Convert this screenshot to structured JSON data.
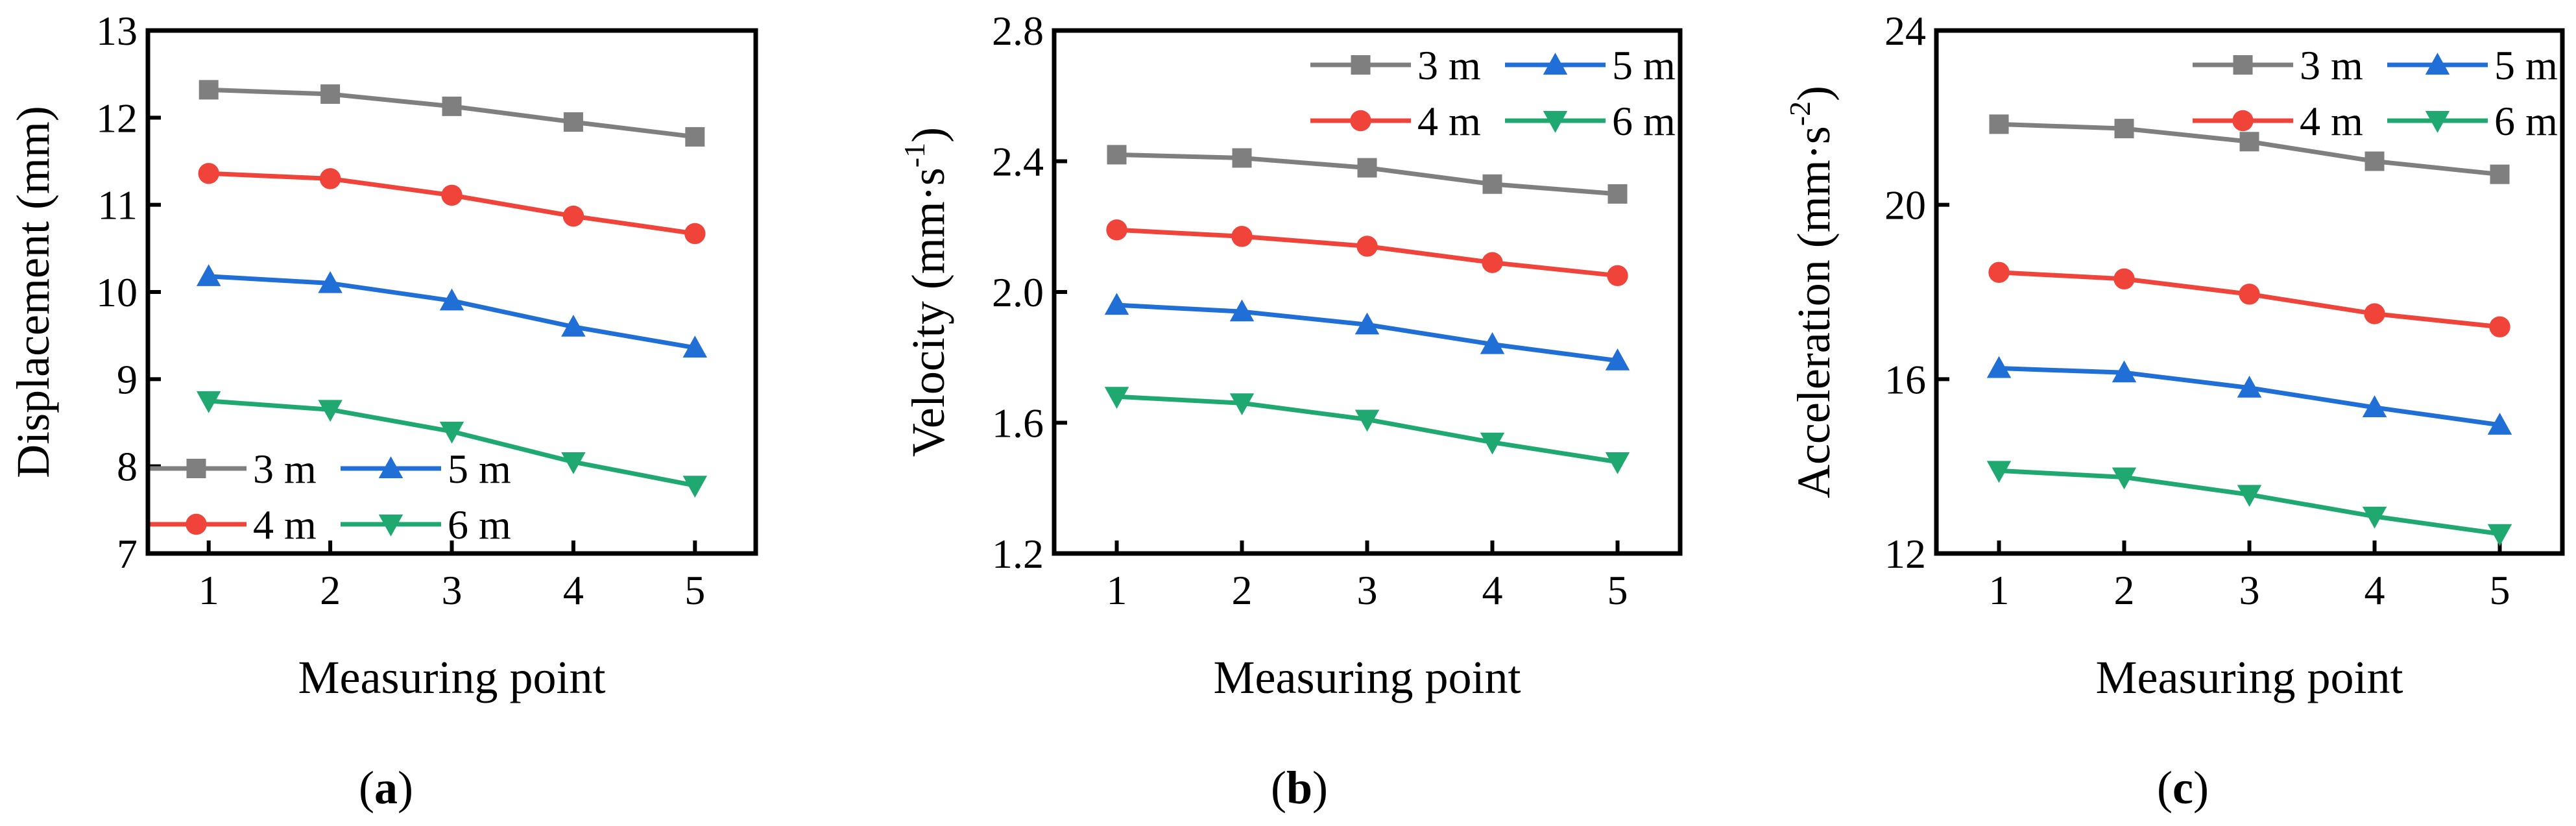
{
  "figure": {
    "panels": [
      {
        "id": "a",
        "label_open": "(",
        "label_letter": "a",
        "label_close": ")"
      },
      {
        "id": "b",
        "label_open": "(",
        "label_letter": "b",
        "label_close": ")"
      },
      {
        "id": "c",
        "label_open": "(",
        "label_letter": "c",
        "label_close": ")"
      }
    ]
  },
  "chart_data": [
    {
      "type": "line",
      "xlabel": "Measuring point",
      "ylabel": "Displacement (mm)",
      "ylabel_parts": {
        "main": "Displacement (mm)",
        "sup": "",
        "tail": ""
      },
      "categories": [
        1,
        2,
        3,
        4,
        5
      ],
      "xlim": [
        0.5,
        5.5
      ],
      "ylim": [
        7,
        13
      ],
      "yticks": [
        7,
        8,
        9,
        10,
        11,
        12,
        13
      ],
      "ytick_labels": [
        "7",
        "8",
        "9",
        "10",
        "11",
        "12",
        "13"
      ],
      "legend_position": "bottom-left",
      "series": [
        {
          "name": "3 m",
          "color": "#7f7f7f",
          "marker": "square",
          "values": [
            12.32,
            12.27,
            12.13,
            11.95,
            11.78
          ]
        },
        {
          "name": "4 m",
          "color": "#f0433a",
          "marker": "circle",
          "values": [
            11.36,
            11.3,
            11.11,
            10.87,
            10.67
          ]
        },
        {
          "name": "5 m",
          "color": "#1f6fd6",
          "marker": "triangle-up",
          "values": [
            10.18,
            10.1,
            9.9,
            9.6,
            9.36
          ]
        },
        {
          "name": "6 m",
          "color": "#1fa971",
          "marker": "triangle-down",
          "values": [
            8.75,
            8.65,
            8.4,
            8.05,
            7.78
          ]
        }
      ]
    },
    {
      "type": "line",
      "xlabel": "Measuring point",
      "ylabel": "Velocity (mm·s-1)",
      "ylabel_parts": {
        "main": "Velocity (mm·s",
        "sup": "-1",
        "tail": ")"
      },
      "categories": [
        1,
        2,
        3,
        4,
        5
      ],
      "xlim": [
        0.5,
        5.5
      ],
      "ylim": [
        1.2,
        2.8
      ],
      "yticks": [
        1.2,
        1.6,
        2.0,
        2.4,
        2.8
      ],
      "ytick_labels": [
        "1.2",
        "1.6",
        "2.0",
        "2.4",
        "2.8"
      ],
      "legend_position": "top-right",
      "series": [
        {
          "name": "3 m",
          "color": "#7f7f7f",
          "marker": "square",
          "values": [
            2.42,
            2.41,
            2.38,
            2.33,
            2.3
          ]
        },
        {
          "name": "4 m",
          "color": "#f0433a",
          "marker": "circle",
          "values": [
            2.19,
            2.17,
            2.14,
            2.09,
            2.05
          ]
        },
        {
          "name": "5 m",
          "color": "#1f6fd6",
          "marker": "triangle-up",
          "values": [
            1.96,
            1.94,
            1.9,
            1.84,
            1.79
          ]
        },
        {
          "name": "6 m",
          "color": "#1fa971",
          "marker": "triangle-down",
          "values": [
            1.68,
            1.66,
            1.61,
            1.54,
            1.48
          ]
        }
      ]
    },
    {
      "type": "line",
      "xlabel": "Measuring point",
      "ylabel": "Acceleration (mm·s-2)",
      "ylabel_parts": {
        "main": "Acceleration (mm·s",
        "sup": "-2",
        "tail": ")"
      },
      "categories": [
        1,
        2,
        3,
        4,
        5
      ],
      "xlim": [
        0.5,
        5.5
      ],
      "ylim": [
        12,
        24
      ],
      "yticks": [
        12,
        16,
        20,
        24
      ],
      "ytick_labels": [
        "12",
        "16",
        "20",
        "24"
      ],
      "legend_position": "top-right",
      "series": [
        {
          "name": "3 m",
          "color": "#7f7f7f",
          "marker": "square",
          "values": [
            21.85,
            21.75,
            21.45,
            21.0,
            20.7
          ]
        },
        {
          "name": "4 m",
          "color": "#f0433a",
          "marker": "circle",
          "values": [
            18.45,
            18.3,
            17.95,
            17.5,
            17.2
          ]
        },
        {
          "name": "5 m",
          "color": "#1f6fd6",
          "marker": "triangle-up",
          "values": [
            16.25,
            16.15,
            15.8,
            15.35,
            14.95
          ]
        },
        {
          "name": "6 m",
          "color": "#1fa971",
          "marker": "triangle-down",
          "values": [
            13.9,
            13.75,
            13.35,
            12.85,
            12.45
          ]
        }
      ]
    }
  ]
}
